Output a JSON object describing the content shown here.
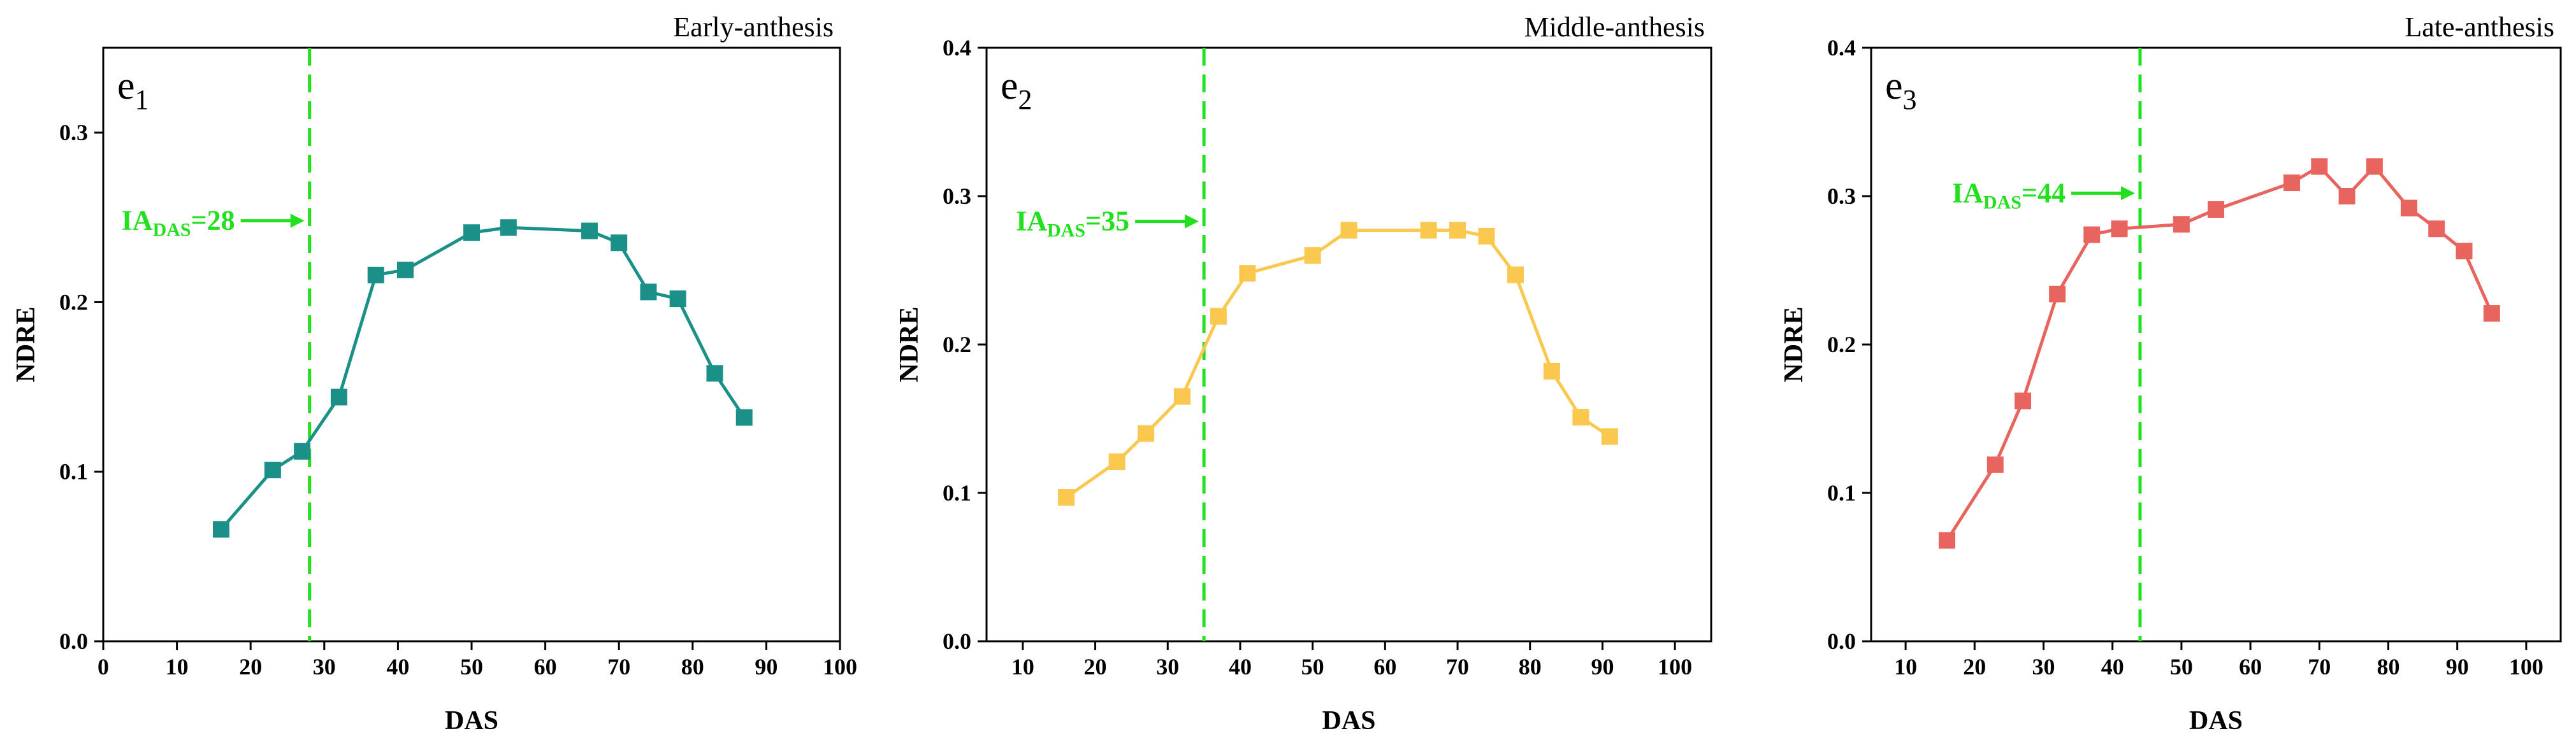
{
  "chart_data": [
    {
      "type": "line",
      "title": "Early-anthesis",
      "panel_label": "e",
      "panel_label_sub": "1",
      "xlabel": "DAS",
      "ylabel": "NDRE",
      "xlim": [
        0,
        100
      ],
      "ylim": [
        0,
        0.35
      ],
      "xticks": [
        0,
        10,
        20,
        30,
        40,
        50,
        60,
        70,
        80,
        90,
        100
      ],
      "yticks": [
        0.0,
        0.1,
        0.2,
        0.3
      ],
      "ytick_labels": [
        "0.0",
        "0.1",
        "0.2",
        "0.3"
      ],
      "color": "#1b9088",
      "series": [
        {
          "name": "NDRE",
          "x": [
            16,
            23,
            27,
            32,
            37,
            41,
            50,
            55,
            66,
            70,
            74,
            78,
            83,
            87
          ],
          "y": [
            0.066,
            0.101,
            0.112,
            0.144,
            0.216,
            0.219,
            0.241,
            0.244,
            0.242,
            0.235,
            0.206,
            0.202,
            0.158,
            0.132
          ]
        }
      ],
      "vline": {
        "x": 28,
        "color": "#22e01d"
      },
      "annotation": {
        "main": "IA",
        "sub": "DAS",
        "value": "=28",
        "y": 0.248
      }
    },
    {
      "type": "line",
      "title": "Middle-anthesis",
      "panel_label": "e",
      "panel_label_sub": "2",
      "xlabel": "DAS",
      "ylabel": "NDRE",
      "xlim": [
        5,
        105
      ],
      "ylim": [
        0,
        0.4
      ],
      "xticks": [
        10,
        20,
        30,
        40,
        50,
        60,
        70,
        80,
        90,
        100
      ],
      "yticks": [
        0.0,
        0.1,
        0.2,
        0.3,
        0.4
      ],
      "ytick_labels": [
        "0.0",
        "0.1",
        "0.2",
        "0.3",
        "0.4"
      ],
      "color": "#fbc84f",
      "series": [
        {
          "name": "NDRE",
          "x": [
            16,
            23,
            27,
            32,
            37,
            41,
            50,
            55,
            66,
            70,
            74,
            78,
            83,
            87,
            91
          ],
          "y": [
            0.097,
            0.121,
            0.14,
            0.165,
            0.219,
            0.248,
            0.26,
            0.277,
            0.277,
            0.277,
            0.273,
            0.247,
            0.182,
            0.151,
            0.138
          ]
        }
      ],
      "vline": {
        "x": 35,
        "color": "#22e01d"
      },
      "annotation": {
        "main": "IA",
        "sub": "DAS",
        "value": "=35",
        "y": 0.283
      }
    },
    {
      "type": "line",
      "title": "Late-anthesis",
      "panel_label": "e",
      "panel_label_sub": "3",
      "xlabel": "DAS",
      "ylabel": "NDRE",
      "xlim": [
        5,
        105
      ],
      "ylim": [
        0,
        0.4
      ],
      "xticks": [
        10,
        20,
        30,
        40,
        50,
        60,
        70,
        80,
        90,
        100
      ],
      "yticks": [
        0.0,
        0.1,
        0.2,
        0.3,
        0.4
      ],
      "ytick_labels": [
        "0.0",
        "0.1",
        "0.2",
        "0.3",
        "0.4"
      ],
      "color": "#e8655f",
      "series": [
        {
          "name": "NDRE",
          "x": [
            16,
            23,
            27,
            32,
            37,
            41,
            50,
            55,
            66,
            70,
            74,
            78,
            83,
            87,
            91,
            95
          ],
          "y": [
            0.068,
            0.119,
            0.162,
            0.234,
            0.274,
            0.278,
            0.281,
            0.291,
            0.309,
            0.32,
            0.3,
            0.32,
            0.292,
            0.278,
            0.263,
            0.221
          ]
        }
      ],
      "vline": {
        "x": 44,
        "color": "#22e01d"
      },
      "annotation": {
        "main": "IA",
        "sub": "DAS",
        "value": "=44",
        "y": 0.302
      }
    }
  ]
}
